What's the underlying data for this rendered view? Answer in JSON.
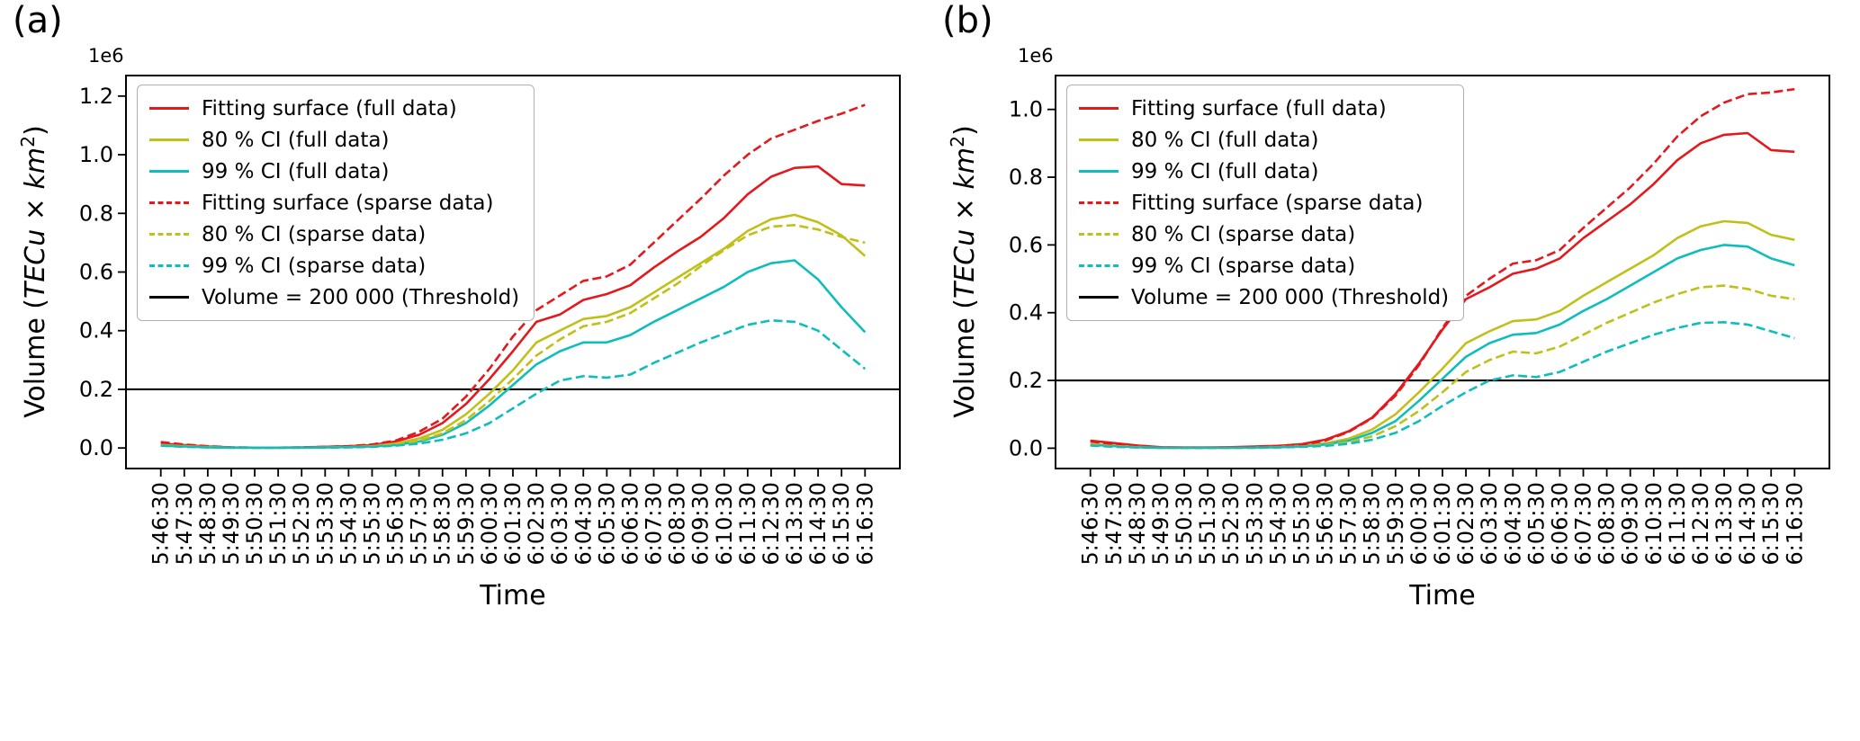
{
  "figure": {
    "background": "#ffffff"
  },
  "chart_data": [
    {
      "type": "line",
      "panel_label": "(a)",
      "xlabel": "Time",
      "ylabel": "Volume (TECu × km²)",
      "ylabel_parts": {
        "pre": "Volume (",
        "var1": "TECu",
        "times": " × ",
        "var2": "km",
        "exp": "2",
        "post": ")"
      },
      "offset_text": "1e6",
      "legend_position": "upper-left",
      "grid": false,
      "ylim": [
        -0.07,
        1.27
      ],
      "yticks": [
        0.0,
        0.2,
        0.4,
        0.6,
        0.8,
        1.0,
        1.2
      ],
      "x_categories": [
        "5:46:30",
        "5:47:30",
        "5:48:30",
        "5:49:30",
        "5:50:30",
        "5:51:30",
        "5:52:30",
        "5:53:30",
        "5:54:30",
        "5:55:30",
        "5:56:30",
        "5:57:30",
        "5:58:30",
        "5:59:30",
        "6:00:30",
        "6:01:30",
        "6:02:30",
        "6:03:30",
        "6:04:30",
        "6:05:30",
        "6:06:30",
        "6:07:30",
        "6:08:30",
        "6:09:30",
        "6:10:30",
        "6:11:30",
        "6:12:30",
        "6:13:30",
        "6:14:30",
        "6:15:30",
        "6:16:30"
      ],
      "threshold": {
        "label": "Volume = 200 000 (Threshold)",
        "value": 0.2,
        "value_absolute": 200000,
        "color": "#000000"
      },
      "series": [
        {
          "name": "Fitting surface (full data)",
          "color": "#e3191e",
          "style": "solid",
          "values": [
            0.015,
            0.01,
            0.005,
            0.002,
            0.001,
            0.001,
            0.002,
            0.004,
            0.006,
            0.01,
            0.022,
            0.045,
            0.085,
            0.15,
            0.235,
            0.33,
            0.43,
            0.455,
            0.505,
            0.525,
            0.555,
            0.615,
            0.67,
            0.72,
            0.785,
            0.865,
            0.925,
            0.955,
            0.96,
            0.9,
            0.895
          ]
        },
        {
          "name": "80 % CI (full data)",
          "color": "#c0c01a",
          "style": "solid",
          "values": [
            0.01,
            0.007,
            0.003,
            0.001,
            0.001,
            0.001,
            0.001,
            0.002,
            0.004,
            0.007,
            0.015,
            0.032,
            0.062,
            0.115,
            0.185,
            0.265,
            0.36,
            0.4,
            0.44,
            0.45,
            0.48,
            0.53,
            0.58,
            0.63,
            0.68,
            0.74,
            0.78,
            0.795,
            0.77,
            0.725,
            0.655
          ]
        },
        {
          "name": "99 % CI (full data)",
          "color": "#0fbdbd",
          "style": "solid",
          "values": [
            0.008,
            0.005,
            0.002,
            0.001,
            0.001,
            0.001,
            0.001,
            0.002,
            0.003,
            0.005,
            0.01,
            0.022,
            0.045,
            0.085,
            0.145,
            0.215,
            0.285,
            0.33,
            0.36,
            0.36,
            0.385,
            0.43,
            0.47,
            0.51,
            0.55,
            0.6,
            0.63,
            0.64,
            0.575,
            0.48,
            0.395
          ]
        },
        {
          "name": "Fitting surface (sparse data)",
          "color": "#e3191e",
          "style": "dashed",
          "values": [
            0.02,
            0.012,
            0.006,
            0.002,
            0.001,
            0.001,
            0.002,
            0.004,
            0.006,
            0.012,
            0.025,
            0.055,
            0.1,
            0.175,
            0.27,
            0.38,
            0.47,
            0.52,
            0.57,
            0.585,
            0.625,
            0.7,
            0.775,
            0.85,
            0.93,
            1.0,
            1.055,
            1.085,
            1.115,
            1.14,
            1.17
          ]
        },
        {
          "name": "80 % CI (sparse data)",
          "color": "#c0c01a",
          "style": "dashed",
          "values": [
            0.01,
            0.006,
            0.003,
            0.001,
            0.001,
            0.001,
            0.001,
            0.002,
            0.003,
            0.006,
            0.012,
            0.025,
            0.05,
            0.095,
            0.16,
            0.235,
            0.315,
            0.37,
            0.415,
            0.43,
            0.46,
            0.51,
            0.56,
            0.62,
            0.675,
            0.725,
            0.755,
            0.76,
            0.745,
            0.72,
            0.7
          ]
        },
        {
          "name": "99 % CI (sparse data)",
          "color": "#0fbdbd",
          "style": "dashed",
          "values": [
            0.008,
            0.004,
            0.002,
            0.001,
            0.001,
            0.001,
            0.001,
            0.001,
            0.002,
            0.004,
            0.008,
            0.015,
            0.028,
            0.05,
            0.085,
            0.135,
            0.185,
            0.23,
            0.245,
            0.24,
            0.25,
            0.29,
            0.325,
            0.36,
            0.39,
            0.42,
            0.435,
            0.43,
            0.4,
            0.335,
            0.27
          ]
        }
      ]
    },
    {
      "type": "line",
      "panel_label": "(b)",
      "xlabel": "Time",
      "ylabel": "Volume (TECu × km²)",
      "ylabel_parts": {
        "pre": "Volume (",
        "var1": "TECu",
        "times": " × ",
        "var2": "km",
        "exp": "2",
        "post": ")"
      },
      "offset_text": "1e6",
      "legend_position": "upper-left",
      "grid": false,
      "ylim": [
        -0.06,
        1.1
      ],
      "yticks": [
        0.0,
        0.2,
        0.4,
        0.6,
        0.8,
        1.0
      ],
      "x_categories": [
        "5:46:30",
        "5:47:30",
        "5:48:30",
        "5:49:30",
        "5:50:30",
        "5:51:30",
        "5:52:30",
        "5:53:30",
        "5:54:30",
        "5:55:30",
        "5:56:30",
        "5:57:30",
        "5:58:30",
        "5:59:30",
        "6:00:30",
        "6:01:30",
        "6:02:30",
        "6:03:30",
        "6:04:30",
        "6:05:30",
        "6:06:30",
        "6:07:30",
        "6:08:30",
        "6:09:30",
        "6:10:30",
        "6:11:30",
        "6:12:30",
        "6:13:30",
        "6:14:30",
        "6:15:30",
        "6:16:30"
      ],
      "threshold": {
        "label": "Volume = 200 000 (Threshold)",
        "value": 0.2,
        "value_absolute": 200000,
        "color": "#000000"
      },
      "series": [
        {
          "name": "Fitting surface (full data)",
          "color": "#e3191e",
          "style": "solid",
          "values": [
            0.022,
            0.015,
            0.008,
            0.003,
            0.002,
            0.002,
            0.003,
            0.005,
            0.007,
            0.012,
            0.025,
            0.05,
            0.09,
            0.16,
            0.25,
            0.35,
            0.44,
            0.475,
            0.515,
            0.53,
            0.56,
            0.62,
            0.67,
            0.72,
            0.78,
            0.85,
            0.9,
            0.925,
            0.93,
            0.88,
            0.875
          ]
        },
        {
          "name": "80 % CI (full data)",
          "color": "#c0c01a",
          "style": "solid",
          "values": [
            0.012,
            0.008,
            0.004,
            0.001,
            0.001,
            0.001,
            0.001,
            0.002,
            0.004,
            0.007,
            0.014,
            0.028,
            0.055,
            0.1,
            0.165,
            0.235,
            0.31,
            0.345,
            0.375,
            0.38,
            0.405,
            0.45,
            0.49,
            0.53,
            0.57,
            0.62,
            0.655,
            0.67,
            0.665,
            0.63,
            0.615
          ]
        },
        {
          "name": "99 % CI (full data)",
          "color": "#0fbdbd",
          "style": "solid",
          "values": [
            0.01,
            0.006,
            0.003,
            0.001,
            0.001,
            0.001,
            0.001,
            0.002,
            0.003,
            0.005,
            0.011,
            0.022,
            0.045,
            0.08,
            0.14,
            0.205,
            0.27,
            0.31,
            0.335,
            0.34,
            0.365,
            0.405,
            0.44,
            0.48,
            0.52,
            0.56,
            0.585,
            0.6,
            0.595,
            0.56,
            0.54
          ]
        },
        {
          "name": "Fitting surface (sparse data)",
          "color": "#e3191e",
          "style": "dashed",
          "values": [
            0.02,
            0.012,
            0.006,
            0.002,
            0.001,
            0.001,
            0.002,
            0.004,
            0.006,
            0.01,
            0.022,
            0.048,
            0.088,
            0.155,
            0.245,
            0.355,
            0.45,
            0.5,
            0.545,
            0.555,
            0.585,
            0.65,
            0.71,
            0.77,
            0.84,
            0.92,
            0.98,
            1.02,
            1.045,
            1.05,
            1.06
          ]
        },
        {
          "name": "80 % CI (sparse data)",
          "color": "#c0c01a",
          "style": "dashed",
          "values": [
            0.01,
            0.006,
            0.003,
            0.001,
            0.001,
            0.001,
            0.001,
            0.001,
            0.003,
            0.005,
            0.009,
            0.018,
            0.035,
            0.065,
            0.11,
            0.165,
            0.225,
            0.26,
            0.285,
            0.28,
            0.3,
            0.335,
            0.37,
            0.4,
            0.43,
            0.455,
            0.475,
            0.48,
            0.47,
            0.45,
            0.44
          ]
        },
        {
          "name": "99 % CI (sparse data)",
          "color": "#0fbdbd",
          "style": "dashed",
          "values": [
            0.008,
            0.004,
            0.002,
            0.001,
            0.001,
            0.001,
            0.001,
            0.001,
            0.002,
            0.004,
            0.007,
            0.013,
            0.025,
            0.045,
            0.08,
            0.125,
            0.165,
            0.2,
            0.215,
            0.21,
            0.225,
            0.255,
            0.285,
            0.31,
            0.335,
            0.355,
            0.37,
            0.372,
            0.365,
            0.345,
            0.325
          ]
        }
      ]
    }
  ]
}
